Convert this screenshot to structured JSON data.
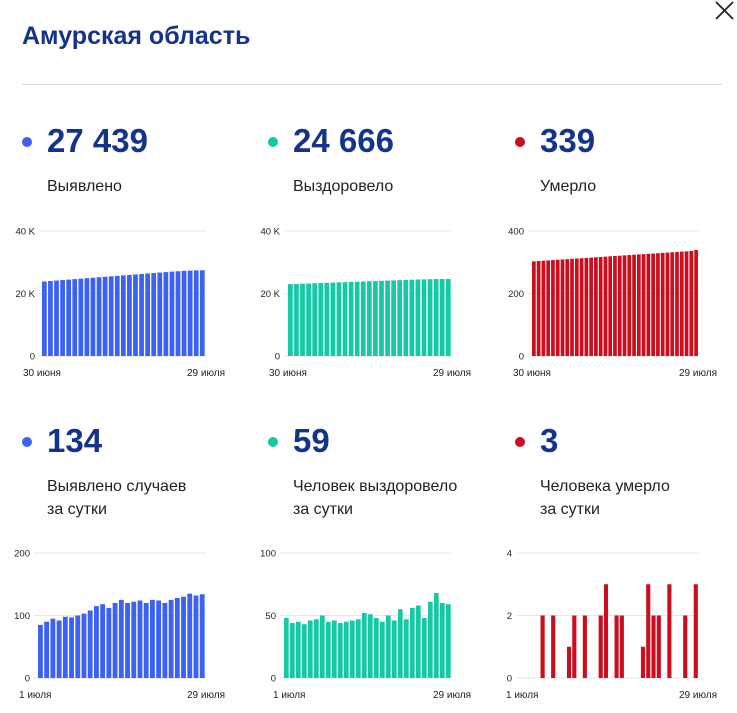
{
  "header": {
    "title": "Амурская область"
  },
  "colors": {
    "title": "#14348a",
    "blue": "#3b62f5",
    "teal": "#14c9a4",
    "red": "#cc0d1d"
  },
  "stats": [
    {
      "value": "27 439",
      "label_line1": "Выявлено",
      "label_line2": "",
      "dot_color": "#3b62f5"
    },
    {
      "value": "24 666",
      "label_line1": "Выздоровело",
      "label_line2": "",
      "dot_color": "#14c9a4"
    },
    {
      "value": "339",
      "label_line1": "Умерло",
      "label_line2": "",
      "dot_color": "#cc0d1d"
    },
    {
      "value": "134",
      "label_line1": "Выявлено случаев",
      "label_line2": "за сутки",
      "dot_color": "#3b62f5"
    },
    {
      "value": "59",
      "label_line1": "Человек выздоровело",
      "label_line2": "за сутки",
      "dot_color": "#14c9a4"
    },
    {
      "value": "3",
      "label_line1": "Человека умерло",
      "label_line2": "за сутки",
      "dot_color": "#cc0d1d"
    }
  ],
  "chart_data": [
    {
      "type": "bar",
      "color": "#3b62f5",
      "ylim": [
        0,
        40000
      ],
      "yticks": [
        "0",
        "20 K",
        "40 K"
      ],
      "ytick_values": [
        0,
        20000,
        40000
      ],
      "xlabels": [
        "30 июня",
        "29 июля"
      ],
      "values": [
        23850,
        24000,
        24150,
        24300,
        24450,
        24600,
        24750,
        24900,
        25050,
        25200,
        25350,
        25500,
        25650,
        25800,
        25950,
        26100,
        26250,
        26400,
        26550,
        26700,
        26850,
        27000,
        27130,
        27260,
        27330,
        27400,
        27439
      ]
    },
    {
      "type": "bar",
      "color": "#14c9a4",
      "ylim": [
        0,
        40000
      ],
      "yticks": [
        "0",
        "20 K",
        "40 K"
      ],
      "ytick_values": [
        0,
        20000,
        40000
      ],
      "xlabels": [
        "30 июня",
        "29 июля"
      ],
      "values": [
        23000,
        23070,
        23140,
        23210,
        23280,
        23350,
        23420,
        23490,
        23560,
        23630,
        23700,
        23770,
        23840,
        23910,
        23980,
        24050,
        24120,
        24190,
        24260,
        24330,
        24400,
        24470,
        24520,
        24570,
        24610,
        24640,
        24666
      ]
    },
    {
      "type": "bar",
      "color": "#cc0d1d",
      "ylim": [
        0,
        400
      ],
      "yticks": [
        "0",
        "200",
        "400"
      ],
      "ytick_values": [
        0,
        200,
        400
      ],
      "xlabels": [
        "30 июня",
        "29 июля"
      ],
      "values": [
        303,
        304,
        305,
        306,
        307,
        308,
        309,
        310,
        311,
        312,
        313,
        314,
        315,
        316,
        317,
        318,
        319,
        320,
        321,
        322,
        323,
        324,
        325,
        326,
        327,
        328,
        329,
        330,
        331,
        332,
        333,
        334,
        335,
        336,
        339
      ]
    },
    {
      "type": "bar",
      "color": "#3b62f5",
      "ylim": [
        0,
        200
      ],
      "yticks": [
        "0",
        "100",
        "200"
      ],
      "ytick_values": [
        0,
        100,
        200
      ],
      "xlabels": [
        "1 июля",
        "29 июля"
      ],
      "values": [
        85,
        90,
        95,
        92,
        98,
        97,
        100,
        103,
        108,
        115,
        118,
        112,
        120,
        125,
        120,
        122,
        124,
        120,
        125,
        124,
        120,
        125,
        128,
        130,
        135,
        132,
        134
      ]
    },
    {
      "type": "bar",
      "color": "#14c9a4",
      "ylim": [
        0,
        100
      ],
      "yticks": [
        "0",
        "50",
        "100"
      ],
      "ytick_values": [
        0,
        50,
        100
      ],
      "xlabels": [
        "1 июля",
        "29 июля"
      ],
      "values": [
        48,
        44,
        45,
        43,
        46,
        47,
        50,
        45,
        46,
        44,
        45,
        46,
        47,
        52,
        51,
        48,
        45,
        50,
        46,
        55,
        47,
        56,
        58,
        48,
        61,
        68,
        60,
        59
      ]
    },
    {
      "type": "bar",
      "color": "#cc0d1d",
      "ylim": [
        0,
        4
      ],
      "yticks": [
        "0",
        "2",
        "4"
      ],
      "ytick_values": [
        0,
        2,
        4
      ],
      "xlabels": [
        "1 июля",
        "29 июля"
      ],
      "values": [
        0,
        0,
        2,
        0,
        2,
        0,
        0,
        1,
        2,
        0,
        2,
        0,
        0,
        2,
        3,
        0,
        2,
        2,
        0,
        0,
        0,
        1,
        3,
        2,
        2,
        0,
        3,
        0,
        0,
        2,
        0,
        3
      ]
    }
  ]
}
